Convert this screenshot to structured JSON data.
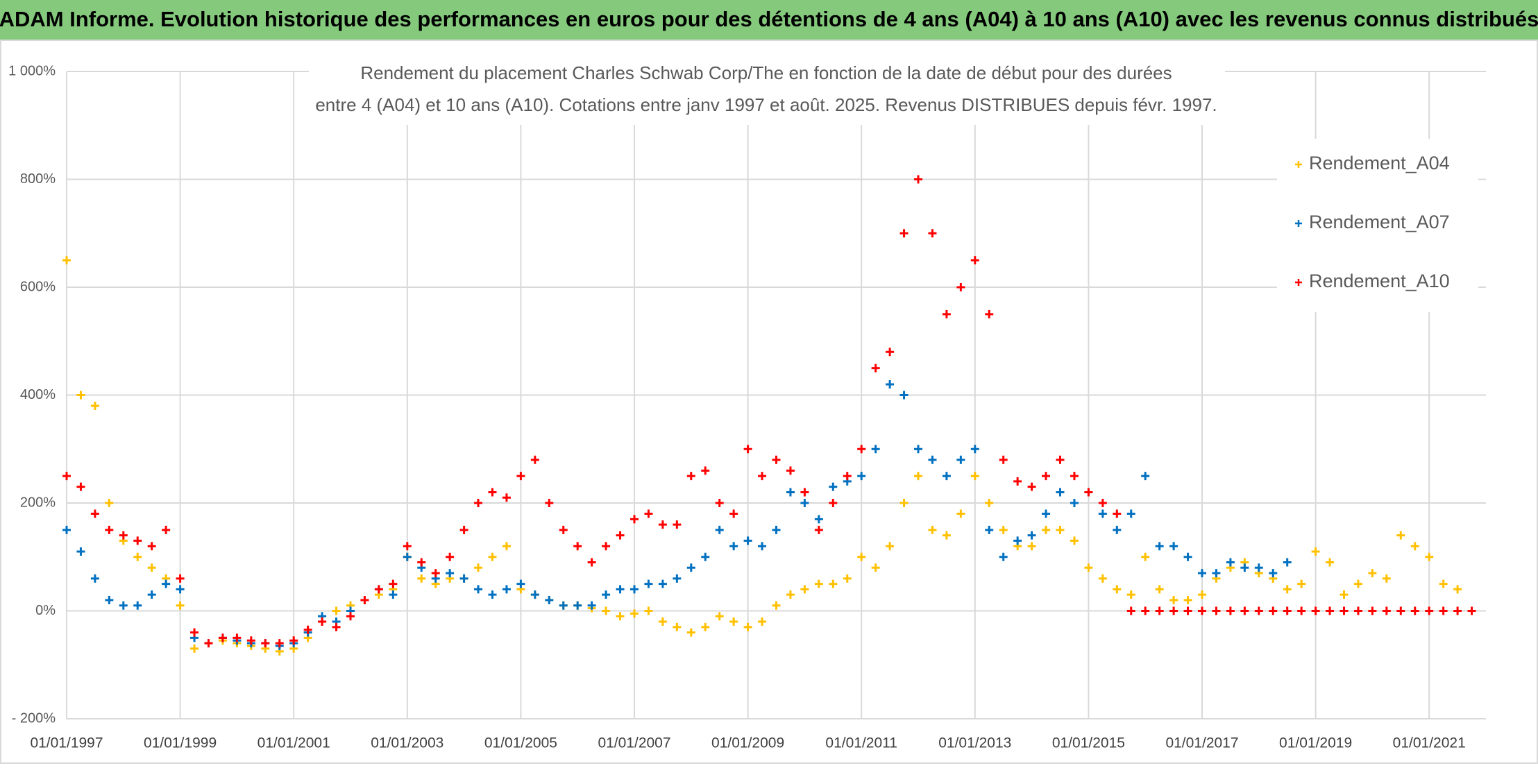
{
  "chart_data": {
    "type": "scatter",
    "header": "ADAM Informe. Evolution historique des performances en euros pour des détentions de 4 ans (A04) à 10 ans (A10) avec les revenus connus distribués",
    "title": "Rendement du placement Charles Schwab Corp/The en fonction de la date de début pour des durées",
    "subtitle": "entre 4 (A04) et 10 ans (A10). Cotations entre janv 1997 et août. 2025. Revenus DISTRIBUES depuis févr. 1997.",
    "x": [
      "1997-01-01",
      "1997-04-01",
      "1997-07-01",
      "1997-10-01",
      "1998-01-01",
      "1998-04-01",
      "1998-07-01",
      "1998-10-01",
      "1999-01-01",
      "1999-04-01",
      "1999-07-01",
      "1999-10-01",
      "2000-01-01",
      "2000-04-01",
      "2000-07-01",
      "2000-10-01",
      "2001-01-01",
      "2001-04-01",
      "2001-07-01",
      "2001-10-01",
      "2002-01-01",
      "2002-04-01",
      "2002-07-01",
      "2002-10-01",
      "2003-01-01",
      "2003-04-01",
      "2003-07-01",
      "2003-10-01",
      "2004-01-01",
      "2004-04-01",
      "2004-07-01",
      "2004-10-01",
      "2005-01-01",
      "2005-04-01",
      "2005-07-01",
      "2005-10-01",
      "2006-01-01",
      "2006-04-01",
      "2006-07-01",
      "2006-10-01",
      "2007-01-01",
      "2007-04-01",
      "2007-07-01",
      "2007-10-01",
      "2008-01-01",
      "2008-04-01",
      "2008-07-01",
      "2008-10-01",
      "2009-01-01",
      "2009-04-01",
      "2009-07-01",
      "2009-10-01",
      "2010-01-01",
      "2010-04-01",
      "2010-07-01",
      "2010-10-01",
      "2011-01-01",
      "2011-04-01",
      "2011-07-01",
      "2011-10-01",
      "2012-01-01",
      "2012-04-01",
      "2012-07-01",
      "2012-10-01",
      "2013-01-01",
      "2013-04-01",
      "2013-07-01",
      "2013-10-01",
      "2014-01-01",
      "2014-04-01",
      "2014-07-01",
      "2014-10-01",
      "2015-01-01",
      "2015-04-01",
      "2015-07-01",
      "2015-10-01",
      "2016-01-01",
      "2016-04-01",
      "2016-07-01",
      "2016-10-01",
      "2017-01-01",
      "2017-04-01",
      "2017-07-01",
      "2017-10-01",
      "2018-01-01",
      "2018-04-01",
      "2018-07-01",
      "2018-10-01",
      "2019-01-01",
      "2019-04-01",
      "2019-07-01",
      "2019-10-01",
      "2020-01-01",
      "2020-04-01",
      "2020-07-01",
      "2020-10-01",
      "2021-01-01",
      "2021-04-01",
      "2021-07-01",
      "2021-10-01"
    ],
    "series": [
      {
        "name": "Rendement_A04",
        "color": "#ffc000",
        "values": [
          650,
          400,
          380,
          200,
          130,
          100,
          80,
          60,
          10,
          -70,
          -60,
          -55,
          -60,
          -65,
          -70,
          -75,
          -70,
          -50,
          -20,
          0,
          10,
          20,
          30,
          40,
          100,
          60,
          50,
          60,
          60,
          80,
          100,
          120,
          40,
          30,
          20,
          10,
          10,
          5,
          0,
          -10,
          -5,
          0,
          -20,
          -30,
          -40,
          -30,
          -10,
          -20,
          -30,
          -20,
          10,
          30,
          40,
          50,
          50,
          60,
          100,
          80,
          120,
          200,
          250,
          150,
          140,
          180,
          250,
          200,
          150,
          120,
          120,
          150,
          150,
          130,
          80,
          60,
          40,
          30,
          100,
          40,
          20,
          20,
          30,
          60,
          80,
          90,
          70,
          60,
          40,
          50,
          110,
          90,
          30,
          50,
          70,
          60,
          140,
          120,
          100,
          50,
          40,
          null
        ]
      },
      {
        "name": "Rendement_A07",
        "color": "#0070c0",
        "values": [
          150,
          110,
          60,
          20,
          10,
          10,
          30,
          50,
          40,
          -50,
          -60,
          -50,
          -55,
          -60,
          -60,
          -65,
          -60,
          -40,
          -10,
          -20,
          0,
          20,
          40,
          30,
          100,
          80,
          60,
          70,
          60,
          40,
          30,
          40,
          50,
          30,
          20,
          10,
          10,
          10,
          30,
          40,
          40,
          50,
          50,
          60,
          80,
          100,
          150,
          120,
          130,
          120,
          150,
          220,
          200,
          170,
          230,
          240,
          250,
          300,
          420,
          400,
          300,
          280,
          250,
          280,
          300,
          150,
          100,
          130,
          140,
          180,
          220,
          200,
          220,
          180,
          150,
          180,
          250,
          120,
          120,
          100,
          70,
          70,
          90,
          80,
          80,
          70,
          90,
          null,
          null,
          null,
          null,
          null,
          null,
          null,
          null,
          null,
          null,
          null,
          null,
          null
        ]
      },
      {
        "name": "Rendement_A10",
        "color": "#ff0000",
        "values": [
          250,
          230,
          180,
          150,
          140,
          130,
          120,
          150,
          60,
          -40,
          -60,
          -50,
          -50,
          -55,
          -60,
          -60,
          -55,
          -35,
          -20,
          -30,
          -10,
          20,
          40,
          50,
          120,
          90,
          70,
          100,
          150,
          200,
          220,
          210,
          250,
          280,
          200,
          150,
          120,
          90,
          120,
          140,
          170,
          180,
          160,
          160,
          250,
          260,
          200,
          180,
          300,
          250,
          280,
          260,
          220,
          150,
          200,
          250,
          300,
          450,
          480,
          700,
          800,
          700,
          550,
          600,
          650,
          550,
          280,
          240,
          230,
          250,
          280,
          250,
          220,
          200,
          180,
          0,
          0,
          0,
          0,
          0,
          0,
          0,
          0,
          0,
          0,
          0,
          0,
          0,
          0,
          0,
          0,
          0,
          0,
          0,
          0,
          0,
          0,
          0,
          0,
          0
        ]
      }
    ],
    "xlim": [
      "1997-01-01",
      "2022-01-01"
    ],
    "xticks": [
      {
        "value": "1997-01-01",
        "label": "01/01/1997"
      },
      {
        "value": "1999-01-01",
        "label": "01/01/1999"
      },
      {
        "value": "2001-01-01",
        "label": "01/01/2001"
      },
      {
        "value": "2003-01-01",
        "label": "01/01/2003"
      },
      {
        "value": "2005-01-01",
        "label": "01/01/2005"
      },
      {
        "value": "2007-01-01",
        "label": "01/01/2007"
      },
      {
        "value": "2009-01-01",
        "label": "01/01/2009"
      },
      {
        "value": "2011-01-01",
        "label": "01/01/2011"
      },
      {
        "value": "2013-01-01",
        "label": "01/01/2013"
      },
      {
        "value": "2015-01-01",
        "label": "01/01/2015"
      },
      {
        "value": "2017-01-01",
        "label": "01/01/2017"
      },
      {
        "value": "2019-01-01",
        "label": "01/01/2019"
      },
      {
        "value": "2021-01-01",
        "label": "01/01/2021"
      }
    ],
    "ylim": [
      -200,
      1000
    ],
    "yticks": [
      {
        "value": -200,
        "label": "- 200%"
      },
      {
        "value": 0,
        "label": "0%"
      },
      {
        "value": 200,
        "label": "200%"
      },
      {
        "value": 400,
        "label": "400%"
      },
      {
        "value": 600,
        "label": "600%"
      },
      {
        "value": 800,
        "label": "800%"
      },
      {
        "value": 1000,
        "label": "1 000%"
      }
    ],
    "grid": true,
    "legend": "top-right"
  }
}
